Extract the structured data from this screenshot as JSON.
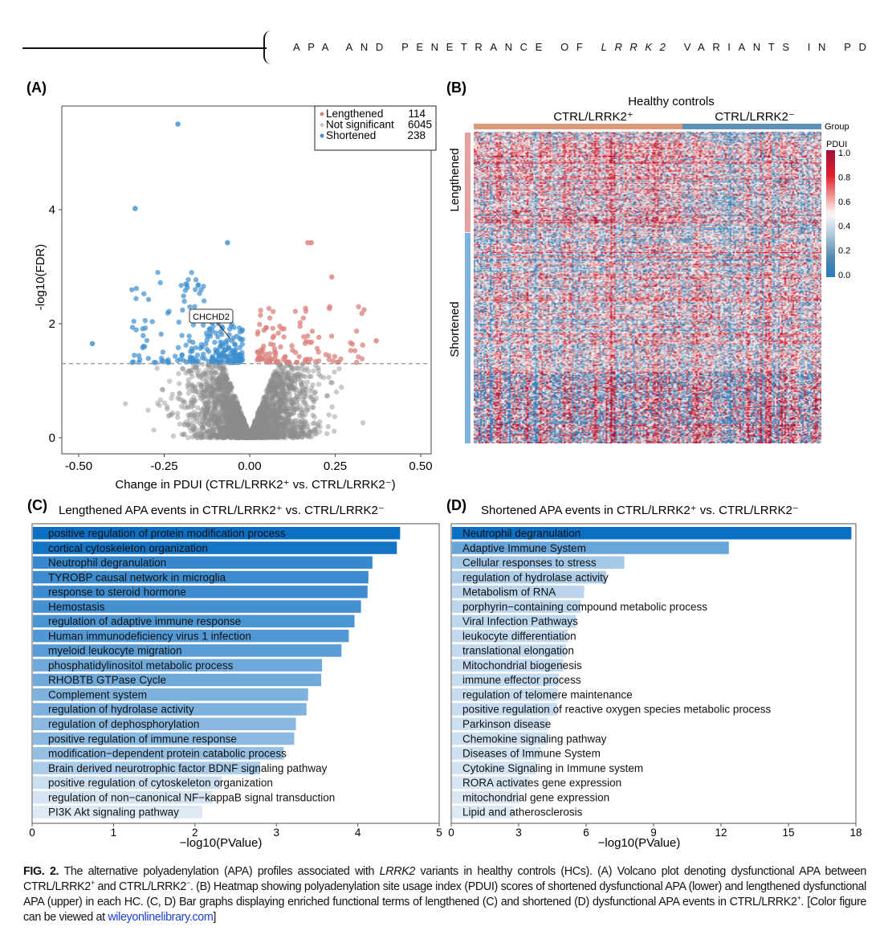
{
  "header": {
    "title_pre": "APA AND PENETRANCE OF ",
    "title_gene": "LRRK2",
    "title_post": " VARIANTS IN PD"
  },
  "panels": {
    "a": "(A)",
    "b": "(B)",
    "c": "(C)",
    "d": "(D)"
  },
  "colors": {
    "lengthened": "#d9807b",
    "not_significant": "#8c8c8c",
    "shortened": "#3d8fcf",
    "bar_dark": "#0b6fc4",
    "bar_light": "#dde9f4"
  },
  "chart_data": [
    {
      "id": "volcano",
      "type": "scatter",
      "xlabel": "Change in PDUI (CTRL/LRRK2⁺ vs. CTRL/LRRK2⁻)",
      "ylabel": "-log10(FDR)",
      "xlim": [
        -0.55,
        0.55
      ],
      "ylim": [
        -0.3,
        5.7
      ],
      "xticks": [
        "-0.50",
        "-0.25",
        "0.00",
        "0.25",
        "0.50"
      ],
      "yticks": [
        "0",
        "2",
        "4"
      ],
      "threshold_y": 1.3,
      "legend_position": "top-right",
      "legend": [
        {
          "name": "Lengthened",
          "count": "114"
        },
        {
          "name": "Not significant",
          "count": "6045"
        },
        {
          "name": "Shortened",
          "count": "238"
        }
      ],
      "annotation": {
        "label": "CHCHD2",
        "x": -0.065,
        "y": 1.7
      },
      "notable_points": [
        {
          "x": -0.21,
          "y": 5.5,
          "group": "Shortened"
        },
        {
          "x": -0.335,
          "y": 4.02,
          "group": "Shortened"
        },
        {
          "x": -0.065,
          "y": 3.42,
          "group": "Shortened"
        },
        {
          "x": 0.17,
          "y": 3.42,
          "group": "Lengthened"
        },
        {
          "x": 0.18,
          "y": 3.42,
          "group": "Lengthened"
        },
        {
          "x": 0.24,
          "y": 2.82,
          "group": "Lengthened"
        },
        {
          "x": -0.46,
          "y": 1.65,
          "group": "Shortened"
        },
        {
          "x": 0.37,
          "y": 1.7,
          "group": "Lengthened"
        }
      ]
    },
    {
      "id": "heatmap",
      "type": "heatmap",
      "title": "Healthy controls",
      "column_groups": [
        "CTRL/LRRK2⁺",
        "CTRL/LRRK2⁻"
      ],
      "column_annotation_label": "Group",
      "row_groups": [
        "Lengthened",
        "Shortened"
      ],
      "colorbar_label": "PDUI",
      "colorbar_ticks": [
        "1.0",
        "0.8",
        "0.6",
        "0.4",
        "0.2",
        "0.0"
      ],
      "range": [
        0,
        1
      ]
    },
    {
      "id": "lengthened-bars",
      "type": "bar",
      "title": "Lengthened APA events in CTRL/LRRK2⁺ vs. CTRL/LRRK2⁻",
      "xlabel": "−log10(PValue)",
      "xlim": [
        0,
        5
      ],
      "xticks": [
        "0",
        "1",
        "2",
        "3",
        "4",
        "5"
      ],
      "categories": [
        "positive regulation of protein modification process",
        "cortical cytoskeleton organization",
        "Neutrophil degranulation",
        "TYROBP causal network in microglia",
        "response to steroid hormone",
        "Hemostasis",
        "regulation of adaptive immune response",
        "Human immunodeficiency virus 1 infection",
        "myeloid leukocyte migration",
        "phosphatidylinositol metabolic process",
        "RHOBTB GTPase Cycle",
        "Complement system",
        "regulation of hydrolase activity",
        "regulation of dephosphorylation",
        "positive regulation of immune response",
        "modification−dependent protein catabolic process",
        "Brain derived neurotrophic factor BDNF signaling pathway",
        "positive regulation of cytoskeleton organization",
        "regulation of non−canonical NF−kappaB signal transduction",
        "PI3K Akt signaling pathway"
      ],
      "values": [
        4.52,
        4.48,
        4.18,
        4.13,
        4.12,
        4.04,
        3.96,
        3.89,
        3.8,
        3.56,
        3.55,
        3.39,
        3.37,
        3.24,
        3.22,
        3.09,
        2.8,
        2.33,
        2.21,
        2.09
      ]
    },
    {
      "id": "shortened-bars",
      "type": "bar",
      "title": "Shortened APA events in CTRL/LRRK2⁺ vs. CTRL/LRRK2⁻",
      "xlabel": "−log10(PValue)",
      "xlim": [
        0,
        18
      ],
      "xticks": [
        "0",
        "3",
        "6",
        "9",
        "12",
        "15",
        "18"
      ],
      "categories": [
        "Neutrophil degranulation",
        "Adaptive Immune System",
        "Cellular responses to stress",
        "regulation of hydrolase activity",
        "Metabolism of RNA",
        "porphyrin−containing compound metabolic process",
        "Viral Infection Pathways",
        "leukocyte differentiation",
        "translational elongation",
        "Mitochondrial biogenesis",
        "immune effector process",
        "regulation of telomere maintenance",
        "positive regulation of reactive oxygen species metabolic process",
        "Parkinson disease",
        "Chemokine signaling pathway",
        "Diseases of Immune System",
        "Cytokine Signaling in Immune system",
        "RORA activates gene expression",
        "mitochondrial gene expression",
        "Lipid and atherosclerosis"
      ],
      "values": [
        17.8,
        12.35,
        7.7,
        6.89,
        5.91,
        5.76,
        5.55,
        5.17,
        5.11,
        4.99,
        4.78,
        4.74,
        4.72,
        4.3,
        4.29,
        4.0,
        3.78,
        3.46,
        3.03,
        2.78
      ]
    }
  ],
  "caption": {
    "label": "FIG. 2.",
    "t1": " The alternative polyadenylation (APA) profiles associated with ",
    "gene": "LRRK2",
    "t2": " variants in healthy controls (HCs). (A) Volcano plot denoting dysfunctional APA between CTRL/LRRK2",
    "sup_plus": "+",
    "t3": " and CTRL/LRRK2",
    "sup_minus": "−",
    "t4": ". (B) Heatmap showing polyadenylation site usage index (PDUI) scores of shortened dysfunctional APA (lower) and lengthened dysfunctional APA (upper) in each HC. (C, D) Bar graphs displaying enriched functional terms of lengthened (C) and shortened (D) dysfunctional APA events in CTRL/LRRK2",
    "sup_plus2": "+",
    "t5": ". [Color figure can be viewed at ",
    "link": "wileyonlinelibrary.com",
    "t6": "]"
  }
}
